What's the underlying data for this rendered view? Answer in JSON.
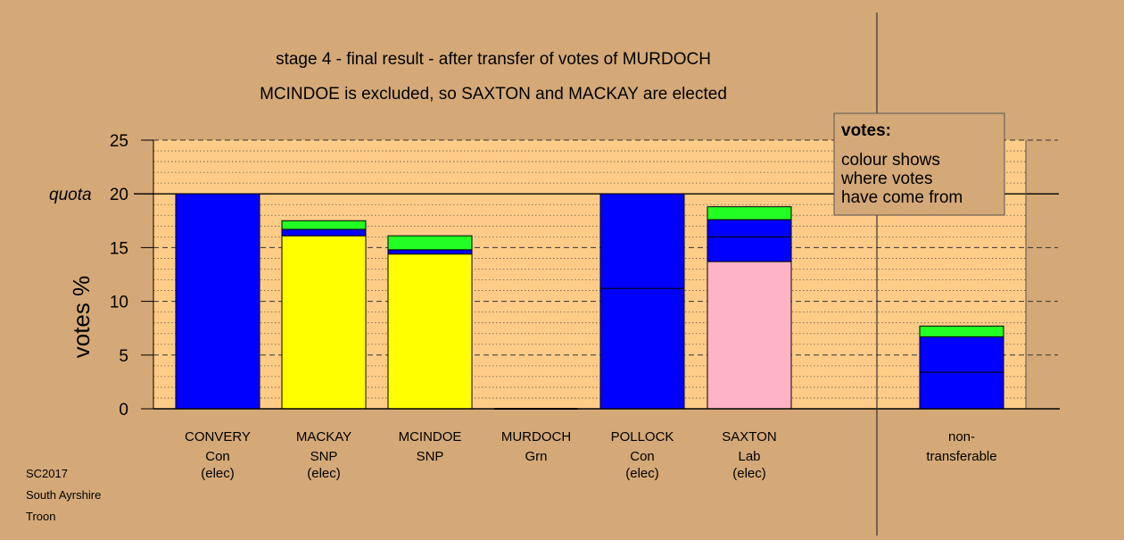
{
  "chart_data": {
    "type": "bar",
    "stacked": true,
    "title": "stage 4 - final result - after transfer of votes of MURDOCH",
    "subtitle": "MCINDOE is excluded, so SAXTON and MACKAY are elected",
    "ylabel": "votes %",
    "ylim": [
      0,
      25
    ],
    "yticks": [
      "0",
      "5",
      "10",
      "15",
      "20",
      "25"
    ],
    "quota": 20,
    "quota_label": "quota",
    "grid": true,
    "colors": {
      "Con": "#0000FF",
      "SNP": "#FFFF00",
      "Lab": "#FFB3C6",
      "Grn": "#22FF22",
      "plot_bg": "#FFCC88",
      "page_bg": "#D4A977"
    },
    "categories": [
      {
        "name": "CONVERY",
        "party": "Con",
        "status": "(elec)",
        "segments": [
          {
            "value": 20.0,
            "color": "Con"
          }
        ]
      },
      {
        "name": "MACKAY",
        "party": "SNP",
        "status": "(elec)",
        "segments": [
          {
            "value": 16.1,
            "color": "SNP"
          },
          {
            "value": 0.6,
            "color": "Con"
          },
          {
            "value": 0.8,
            "color": "Grn"
          }
        ]
      },
      {
        "name": "MCINDOE",
        "party": "SNP",
        "status": "",
        "segments": [
          {
            "value": 14.4,
            "color": "SNP"
          },
          {
            "value": 0.4,
            "color": "Con"
          },
          {
            "value": 1.3,
            "color": "Grn"
          }
        ]
      },
      {
        "name": "MURDOCH",
        "party": "Grn",
        "status": "",
        "segments": []
      },
      {
        "name": "POLLOCK",
        "party": "Con",
        "status": "(elec)",
        "segments": [
          {
            "value": 11.2,
            "color": "Con"
          },
          {
            "value": 8.8,
            "color": "Con"
          }
        ]
      },
      {
        "name": "SAXTON",
        "party": "Lab",
        "status": "(elec)",
        "segments": [
          {
            "value": 13.7,
            "color": "Lab"
          },
          {
            "value": 2.3,
            "color": "Con"
          },
          {
            "value": 1.6,
            "color": "Con"
          },
          {
            "value": 1.2,
            "color": "Grn"
          }
        ]
      }
    ],
    "nontransferable": {
      "line1": "non-",
      "line2": "transferable",
      "segments": [
        {
          "value": 3.4,
          "color": "Con"
        },
        {
          "value": 3.3,
          "color": "Con"
        },
        {
          "value": 1.0,
          "color": "Grn"
        }
      ]
    },
    "legend": {
      "title": "votes:",
      "lines": [
        "colour shows",
        "where votes",
        "have come from"
      ]
    }
  },
  "footer": [
    "SC2017",
    "South Ayrshire",
    "Troon"
  ]
}
